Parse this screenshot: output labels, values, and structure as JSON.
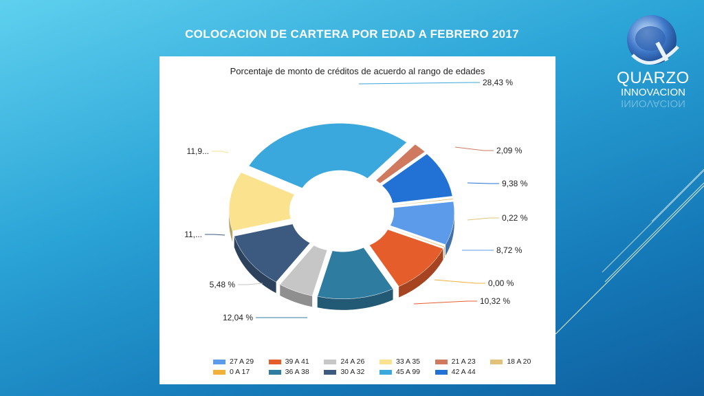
{
  "slide": {
    "title": "COLOCACION DE CARTERA POR EDAD A FEBRERO 2017"
  },
  "logo": {
    "line1": "QUARZO",
    "line2": "INNOVACION",
    "reflection": "INNOVACION"
  },
  "chart_data": {
    "type": "pie",
    "variant": "3d-exploded-donut",
    "title": "Porcentaje de monto de créditos de acuerdo al rango de edades",
    "legend_position": "bottom",
    "series": [
      {
        "name": "45 A 99",
        "value": 28.43,
        "label": "28,43 %",
        "color": "#3aa7dd"
      },
      {
        "name": "21 A 23",
        "value": 2.09,
        "label": "2,09 %",
        "color": "#cf7a5f"
      },
      {
        "name": "42 A 44",
        "value": 9.38,
        "label": "9,38 %",
        "color": "#2272d6"
      },
      {
        "name": "18 A 20",
        "value": 0.22,
        "label": "0,22 %",
        "color": "#e2c27a"
      },
      {
        "name": "27 A 29",
        "value": 8.72,
        "label": "8,72 %",
        "color": "#5b9bea"
      },
      {
        "name": "0  A 17",
        "value": 0.0,
        "label": "0,00 %",
        "color": "#f0b03a"
      },
      {
        "name": "39 A 41",
        "value": 10.32,
        "label": "10,32 %",
        "color": "#e65d2c"
      },
      {
        "name": "36 A 38",
        "value": 12.04,
        "label": "12,04 %",
        "color": "#2f7ca1"
      },
      {
        "name": "24 A 26",
        "value": 5.48,
        "label": "5,48 %",
        "color": "#c6c6c6"
      },
      {
        "name": "30 A 32",
        "value": 11.39,
        "label": "11,...",
        "color": "#3c5a80"
      },
      {
        "name": "33 A 35",
        "value": 11.93,
        "label": "11,9...",
        "color": "#fae28e"
      }
    ],
    "legend_order": [
      "27 A 29",
      "39 A 41",
      "24 A 26",
      "33 A 35",
      "21 A 23",
      "18 A 20",
      "0  A 17",
      "36 A 38",
      "30 A 32",
      "45 A 99",
      "42 A 44"
    ]
  }
}
